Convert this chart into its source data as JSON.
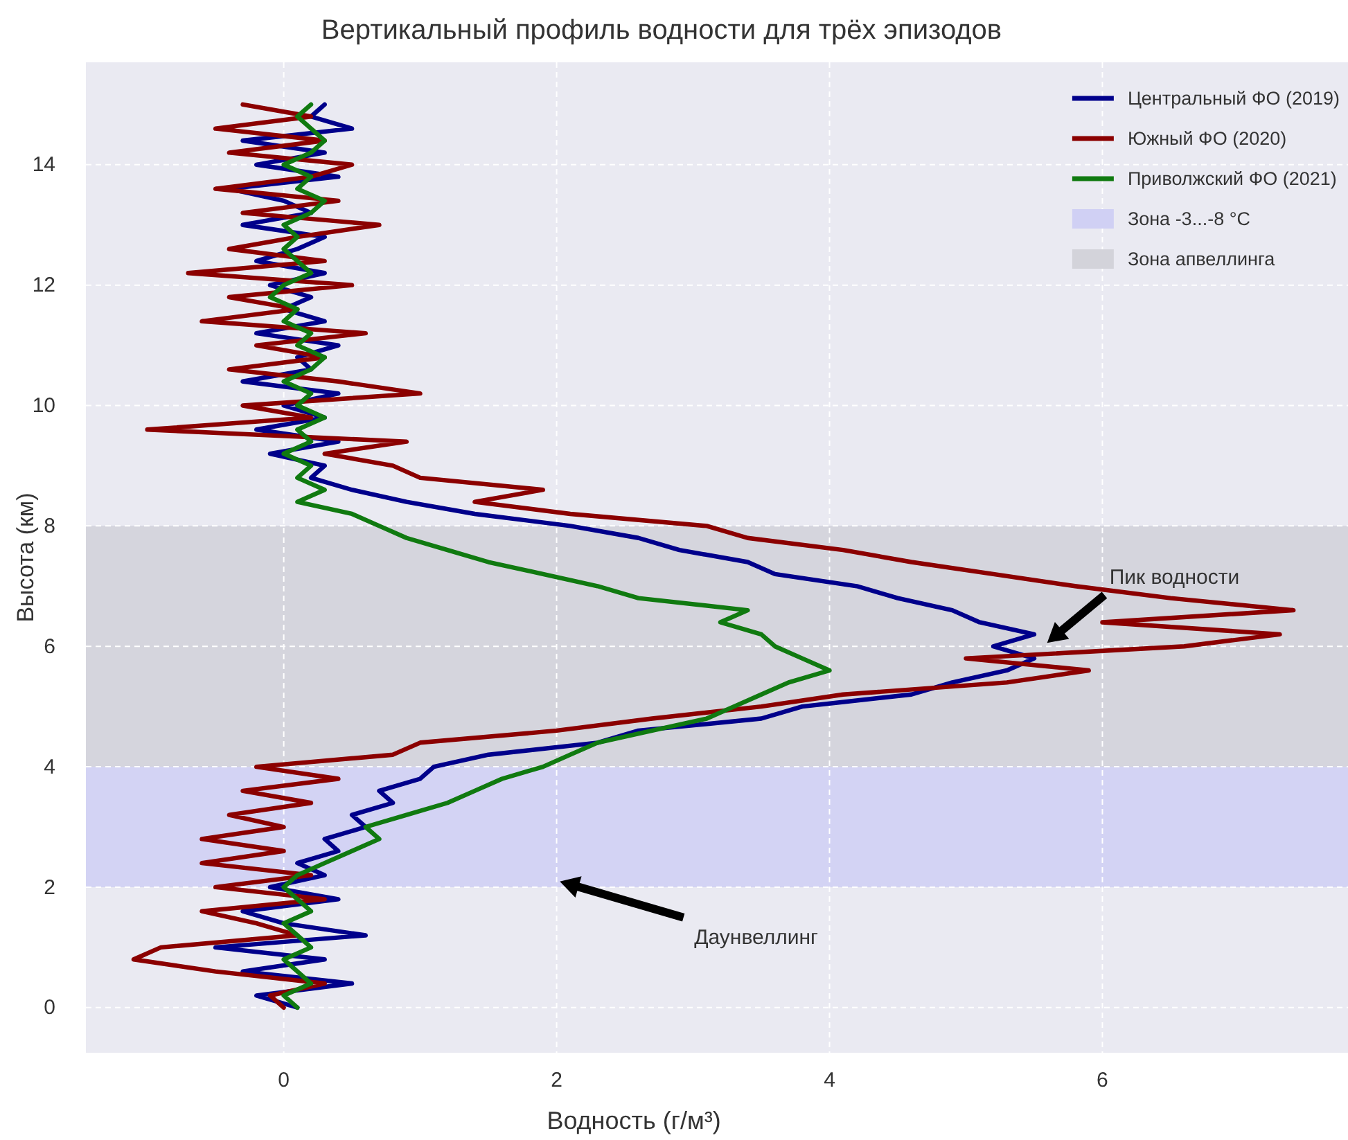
{
  "chart_data": {
    "type": "line",
    "title": "Вертикальный профиль водности для трёх эпизодов",
    "xlabel": "Водность (г/м³)",
    "ylabel": "Высота (км)",
    "xlim": [
      -1.45,
      7.8
    ],
    "ylim": [
      -0.75,
      15.7
    ],
    "xticks": [
      0,
      2,
      4,
      6
    ],
    "yticks": [
      0,
      2,
      4,
      6,
      8,
      10,
      12,
      14
    ],
    "grid": true,
    "legend": "top right",
    "line_style": "solid",
    "series": [
      {
        "name": "Центральный ФО (2019)",
        "color": "#00008b",
        "x": [
          0.1,
          -0.2,
          0.5,
          -0.3,
          0.3,
          -0.5,
          0.6,
          0.0,
          -0.3,
          0.4,
          -0.1,
          0.3,
          0.1,
          0.4,
          0.3,
          0.6,
          0.5,
          0.8,
          0.7,
          1.0,
          1.1,
          1.5,
          2.3,
          2.6,
          3.5,
          3.8,
          4.6,
          4.9,
          5.3,
          5.5,
          5.2,
          5.5,
          5.1,
          4.9,
          4.5,
          4.2,
          3.6,
          3.4,
          2.9,
          2.6,
          2.1,
          1.4,
          0.9,
          0.5,
          0.2,
          0.3,
          -0.1,
          0.4,
          -0.2,
          0.3,
          0.0,
          0.4,
          -0.3,
          0.2,
          0.1,
          0.4,
          -0.2,
          0.3,
          0.0,
          0.2,
          -0.1,
          0.3,
          -0.2,
          0.1,
          0.3,
          -0.3,
          0.2,
          0.0,
          -0.4,
          0.4,
          -0.2,
          0.3,
          -0.3,
          0.5,
          0.2,
          0.3
        ],
        "values": [
          0,
          0.2,
          0.4,
          0.6,
          0.8,
          1,
          1.2,
          1.4,
          1.6,
          1.8,
          2,
          2.2,
          2.4,
          2.6,
          2.8,
          3,
          3.2,
          3.4,
          3.6,
          3.8,
          4,
          4.2,
          4.4,
          4.6,
          4.8,
          5,
          5.2,
          5.4,
          5.6,
          5.8,
          6,
          6.2,
          6.4,
          6.6,
          6.8,
          7,
          7.2,
          7.4,
          7.6,
          7.8,
          8,
          8.2,
          8.4,
          8.6,
          8.8,
          9,
          9.2,
          9.4,
          9.6,
          9.8,
          10,
          10.2,
          10.4,
          10.6,
          10.8,
          11,
          11.2,
          11.4,
          11.6,
          11.8,
          12,
          12.2,
          12.4,
          12.6,
          12.8,
          13,
          13.2,
          13.4,
          13.6,
          13.8,
          14,
          14.2,
          14.4,
          14.6,
          14.8,
          15
        ]
      },
      {
        "name": "Южный ФО (2020)",
        "color": "#8b0000",
        "x": [
          0.0,
          -0.1,
          0.3,
          -0.5,
          -1.1,
          -0.9,
          0.1,
          -0.2,
          -0.6,
          0.3,
          -0.5,
          0.2,
          -0.6,
          0.0,
          -0.6,
          0.0,
          -0.4,
          0.2,
          -0.3,
          0.4,
          -0.2,
          0.8,
          1.0,
          2.0,
          2.7,
          3.5,
          4.1,
          5.3,
          5.9,
          5.0,
          6.6,
          7.3,
          6.0,
          7.4,
          6.5,
          5.8,
          5.2,
          4.6,
          4.1,
          3.4,
          3.1,
          2.1,
          1.4,
          1.9,
          1.0,
          0.8,
          0.3,
          0.9,
          -1.0,
          0.2,
          -0.3,
          1.0,
          0.4,
          -0.4,
          0.3,
          -0.2,
          0.6,
          -0.6,
          0.1,
          -0.4,
          0.5,
          -0.7,
          0.3,
          -0.4,
          0.1,
          0.7,
          -0.3,
          0.4,
          -0.5,
          0.2,
          0.5,
          -0.4,
          0.3,
          -0.5,
          0.2,
          -0.3
        ],
        "values": [
          0,
          0.2,
          0.4,
          0.6,
          0.8,
          1,
          1.2,
          1.4,
          1.6,
          1.8,
          2,
          2.2,
          2.4,
          2.6,
          2.8,
          3,
          3.2,
          3.4,
          3.6,
          3.8,
          4,
          4.2,
          4.4,
          4.6,
          4.8,
          5,
          5.2,
          5.4,
          5.6,
          5.8,
          6,
          6.2,
          6.4,
          6.6,
          6.8,
          7,
          7.2,
          7.4,
          7.6,
          7.8,
          8,
          8.2,
          8.4,
          8.6,
          8.8,
          9,
          9.2,
          9.4,
          9.6,
          9.8,
          10,
          10.2,
          10.4,
          10.6,
          10.8,
          11,
          11.2,
          11.4,
          11.6,
          11.8,
          12,
          12.2,
          12.4,
          12.6,
          12.8,
          13,
          13.2,
          13.4,
          13.6,
          13.8,
          14,
          14.2,
          14.4,
          14.6,
          14.8,
          15
        ]
      },
      {
        "name": "Приволжский ФО (2021)",
        "color": "#107a10",
        "x": [
          0.1,
          0.0,
          0.2,
          0.1,
          0.0,
          0.2,
          0.1,
          0.0,
          0.2,
          0.1,
          0.0,
          0.1,
          0.3,
          0.5,
          0.7,
          0.6,
          0.9,
          1.2,
          1.4,
          1.6,
          1.9,
          2.1,
          2.3,
          2.7,
          3.1,
          3.3,
          3.5,
          3.7,
          4.0,
          3.8,
          3.6,
          3.5,
          3.2,
          3.4,
          2.6,
          2.3,
          1.9,
          1.5,
          1.2,
          0.9,
          0.7,
          0.5,
          0.1,
          0.3,
          0.1,
          0.2,
          0.0,
          0.2,
          0.1,
          0.3,
          0.1,
          0.2,
          0.0,
          0.2,
          0.3,
          0.1,
          0.2,
          0.0,
          0.1,
          -0.1,
          0.0,
          0.2,
          0.1,
          0.0,
          0.1,
          0.0,
          0.2,
          0.3,
          0.1,
          0.2,
          0.0,
          0.2,
          0.3,
          0.2,
          0.1,
          0.2
        ],
        "values": [
          0,
          0.2,
          0.4,
          0.6,
          0.8,
          1,
          1.2,
          1.4,
          1.6,
          1.8,
          2,
          2.2,
          2.4,
          2.6,
          2.8,
          3,
          3.2,
          3.4,
          3.6,
          3.8,
          4,
          4.2,
          4.4,
          4.6,
          4.8,
          5,
          5.2,
          5.4,
          5.6,
          5.8,
          6,
          6.2,
          6.4,
          6.6,
          6.8,
          7,
          7.2,
          7.4,
          7.6,
          7.8,
          8,
          8.2,
          8.4,
          8.6,
          8.8,
          9,
          9.2,
          9.4,
          9.6,
          9.8,
          10,
          10.2,
          10.4,
          10.6,
          10.8,
          11,
          11.2,
          11.4,
          11.6,
          11.8,
          12,
          12.2,
          12.4,
          12.6,
          12.8,
          13,
          13.2,
          13.4,
          13.6,
          13.8,
          14,
          14.2,
          14.4,
          14.6,
          14.8,
          15
        ]
      }
    ],
    "bands": [
      {
        "axis": "y",
        "from": 2,
        "to": 4,
        "label": "Зона -3...-8 °C",
        "color": "#d0d0f4"
      },
      {
        "axis": "y",
        "from": 4,
        "to": 8,
        "label": "Зона апвеллинга",
        "color": "#d3d3da"
      }
    ],
    "annotations": [
      "Пик водности",
      "Даунвеллинг"
    ]
  }
}
